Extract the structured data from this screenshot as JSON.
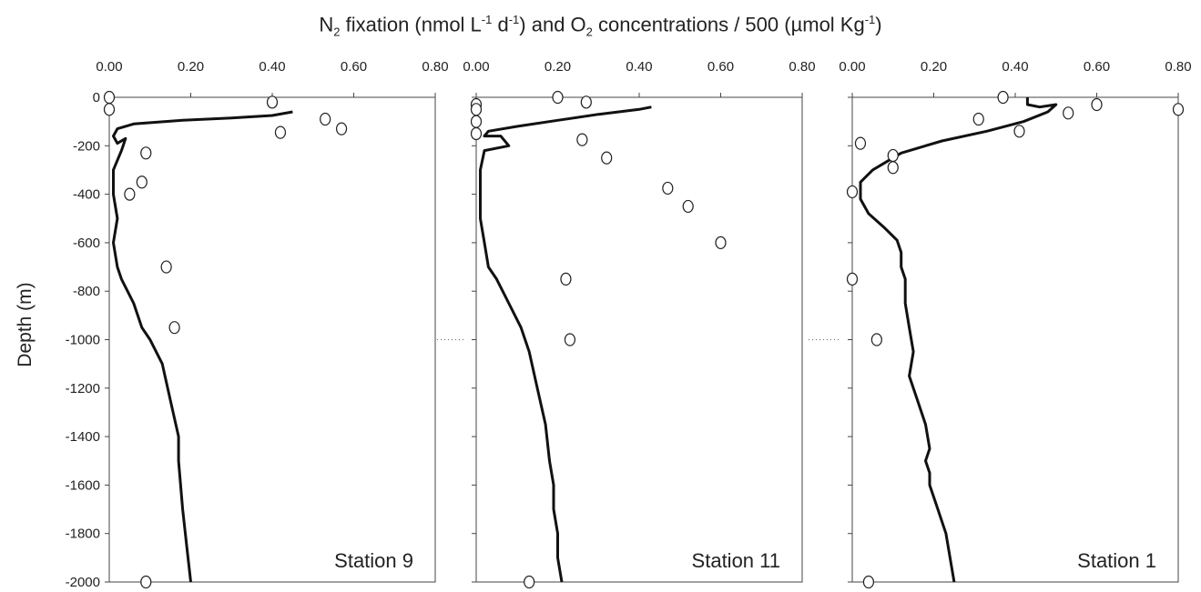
{
  "title_parts": [
    "N",
    "2",
    " fixation (nmol L",
    "-1",
    " d",
    "-1",
    ") and O",
    "2",
    " concentrations / 500 (µmol Kg",
    "-1",
    ")"
  ],
  "ylabel": "Depth (m)",
  "chart_data": [
    {
      "type": "scatter",
      "station": "Station 9",
      "xlim": [
        0,
        0.8
      ],
      "ylim": [
        -2000,
        0
      ],
      "x_ticks": [
        "0.00",
        "0.20",
        "0.40",
        "0.60",
        "0.80"
      ],
      "y_ticks": [
        "0",
        "-200",
        "-400",
        "-600",
        "-800",
        "-1000",
        "-1200",
        "-1400",
        "-1600",
        "-1800",
        "-2000"
      ],
      "series": [
        {
          "marker": "open-circle",
          "x": [
            0.0,
            0.0,
            0.4,
            0.53,
            0.57,
            0.42,
            0.09,
            0.08,
            0.05,
            0.14,
            0.16,
            0.09
          ],
          "y": [
            0,
            -50,
            -20,
            -90,
            -130,
            -145,
            -230,
            -350,
            -400,
            -700,
            -950,
            -2000
          ]
        },
        {
          "marker": "line",
          "x": [
            0.45,
            0.4,
            0.3,
            0.18,
            0.06,
            0.02,
            0.01,
            0.02,
            0.04,
            0.03,
            0.01,
            0.01,
            0.02,
            0.01,
            0.02,
            0.03,
            0.06,
            0.08,
            0.1,
            0.13,
            0.15,
            0.17,
            0.17,
            0.18,
            0.19,
            0.2
          ],
          "y": [
            -60,
            -75,
            -85,
            -95,
            -110,
            -130,
            -160,
            -190,
            -170,
            -220,
            -300,
            -400,
            -500,
            -600,
            -700,
            -750,
            -850,
            -950,
            -1000,
            -1100,
            -1250,
            -1400,
            -1500,
            -1700,
            -1850,
            -2000
          ]
        }
      ]
    },
    {
      "type": "scatter",
      "station": "Station 11",
      "xlim": [
        0,
        0.8
      ],
      "ylim": [
        -2000,
        0
      ],
      "x_ticks": [
        "0.00",
        "0.20",
        "0.40",
        "0.60",
        "0.80"
      ],
      "y_ticks": [],
      "series": [
        {
          "marker": "open-circle",
          "x": [
            0.2,
            0.27,
            0.0,
            0.0,
            0.0,
            0.0,
            0.26,
            0.32,
            0.47,
            0.52,
            0.6,
            0.22,
            0.23,
            0.13
          ],
          "y": [
            0,
            -20,
            -30,
            -50,
            -100,
            -150,
            -175,
            -250,
            -375,
            -450,
            -600,
            -750,
            -1000,
            -2000
          ]
        },
        {
          "marker": "line",
          "x": [
            0.43,
            0.4,
            0.3,
            0.2,
            0.1,
            0.03,
            0.02,
            0.06,
            0.08,
            0.02,
            0.01,
            0.01,
            0.01,
            0.02,
            0.03,
            0.05,
            0.08,
            0.11,
            0.13,
            0.15,
            0.17,
            0.18,
            0.19,
            0.19,
            0.2,
            0.2,
            0.21
          ],
          "y": [
            -40,
            -50,
            -70,
            -95,
            -120,
            -140,
            -160,
            -160,
            -200,
            -220,
            -300,
            -400,
            -500,
            -600,
            -700,
            -750,
            -850,
            -950,
            -1050,
            -1200,
            -1350,
            -1500,
            -1600,
            -1700,
            -1800,
            -1900,
            -2000
          ]
        }
      ]
    },
    {
      "type": "scatter",
      "station": "Station 1",
      "xlim": [
        0,
        0.8
      ],
      "ylim": [
        -2000,
        0
      ],
      "x_ticks": [
        "0.00",
        "0.20",
        "0.40",
        "0.60",
        "0.80"
      ],
      "y_ticks": [],
      "series": [
        {
          "marker": "open-circle",
          "x": [
            0.37,
            0.6,
            0.8,
            0.53,
            0.31,
            0.41,
            0.02,
            0.1,
            0.1,
            0.0,
            0.0,
            0.06,
            0.04
          ],
          "y": [
            0,
            -30,
            -50,
            -65,
            -90,
            -140,
            -190,
            -240,
            -290,
            -390,
            -750,
            -1000,
            -2000
          ]
        },
        {
          "marker": "line",
          "x": [
            0.43,
            0.43,
            0.46,
            0.5,
            0.48,
            0.42,
            0.33,
            0.22,
            0.12,
            0.05,
            0.02,
            0.02,
            0.04,
            0.08,
            0.11,
            0.12,
            0.12,
            0.13,
            0.13,
            0.14,
            0.15,
            0.14,
            0.16,
            0.18,
            0.19,
            0.18,
            0.19,
            0.19,
            0.21,
            0.23,
            0.24,
            0.25
          ],
          "y": [
            0,
            -30,
            -40,
            -30,
            -60,
            -100,
            -140,
            -180,
            -230,
            -300,
            -350,
            -420,
            -480,
            -540,
            -590,
            -640,
            -700,
            -750,
            -850,
            -950,
            -1050,
            -1150,
            -1250,
            -1350,
            -1450,
            -1500,
            -1550,
            -1600,
            -1700,
            -1800,
            -1900,
            -2000
          ]
        }
      ]
    }
  ]
}
